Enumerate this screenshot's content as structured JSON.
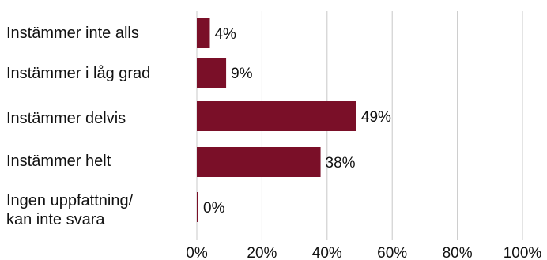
{
  "chart_data": {
    "type": "bar",
    "orientation": "horizontal",
    "categories": [
      "Instämmer inte alls",
      "Instämmer i låg grad",
      "Instämmer delvis",
      "Instämmer helt",
      "Ingen uppfattning/\nkan inte svara"
    ],
    "values": [
      4,
      9,
      49,
      38,
      0
    ],
    "value_labels": [
      "4%",
      "9%",
      "49%",
      "38%",
      "0%"
    ],
    "x_ticks": [
      "0%",
      "20%",
      "40%",
      "60%",
      "80%",
      "100%"
    ],
    "xlim": [
      0,
      100
    ],
    "grid": "vertical",
    "legend": "none",
    "title": "",
    "xlabel": "",
    "ylabel": "",
    "bar_color": "#7a0f28",
    "grid_color": "#c8c8c8",
    "text_color": "#111111"
  }
}
